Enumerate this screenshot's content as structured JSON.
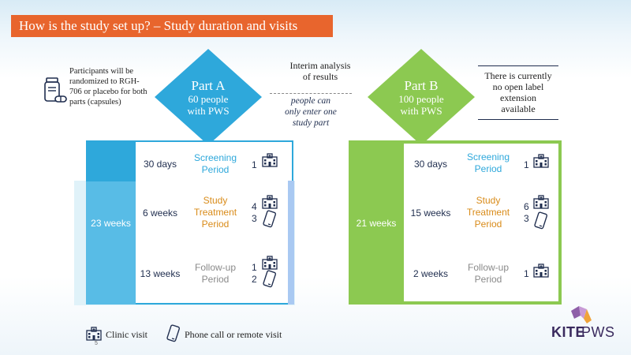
{
  "title": "How is the study set up? – Study duration and visits",
  "participants_text": "Participants will be randomized to RGH-706 or placebo for both parts (capsules)",
  "part_a": {
    "name": "Part A",
    "people": "60 people",
    "condition": "with PWS",
    "total": "23 weeks",
    "rows": [
      {
        "duration": "30 days",
        "period_lines": [
          "Screening",
          "Period"
        ],
        "clinic": "1",
        "phone": ""
      },
      {
        "duration": "6 weeks",
        "period_lines": [
          "Study",
          "Treatment",
          "Period"
        ],
        "clinic": "4",
        "phone": "3"
      },
      {
        "duration": "13 weeks",
        "period_lines": [
          "Follow-up",
          "Period"
        ],
        "clinic": "1",
        "phone": "2"
      }
    ]
  },
  "part_b": {
    "name": "Part B",
    "people": "100 people",
    "condition": "with PWS",
    "total": "21 weeks",
    "rows": [
      {
        "duration": "30 days",
        "period_lines": [
          "Screening",
          "Period"
        ],
        "clinic": "1",
        "phone": ""
      },
      {
        "duration": "15 weeks",
        "period_lines": [
          "Study",
          "Treatment",
          "Period"
        ],
        "clinic": "6",
        "phone": "3"
      },
      {
        "duration": "2 weeks",
        "period_lines": [
          "Follow-up",
          "Period"
        ],
        "clinic": "1",
        "phone": ""
      }
    ]
  },
  "interim_lines": [
    "Interim analysis",
    "of results"
  ],
  "enter_lines": [
    "people can",
    "only enter one",
    "study part"
  ],
  "no_extension_lines": [
    "There is currently",
    "no open label",
    "extension",
    "available"
  ],
  "legend": {
    "clinic": "Clinic visit",
    "phone": "Phone call or remote visit"
  },
  "page_number": "5",
  "logo": {
    "kite": "KITE",
    "pws": "PWS"
  },
  "colors": {
    "orange": "#e8652d",
    "blue": "#2ea8db",
    "green": "#8cc951",
    "navy": "#1f2d4e"
  },
  "icons": [
    "pill-bottle-icon",
    "clinic-building-icon",
    "phone-icon",
    "kite-logo-icon"
  ]
}
